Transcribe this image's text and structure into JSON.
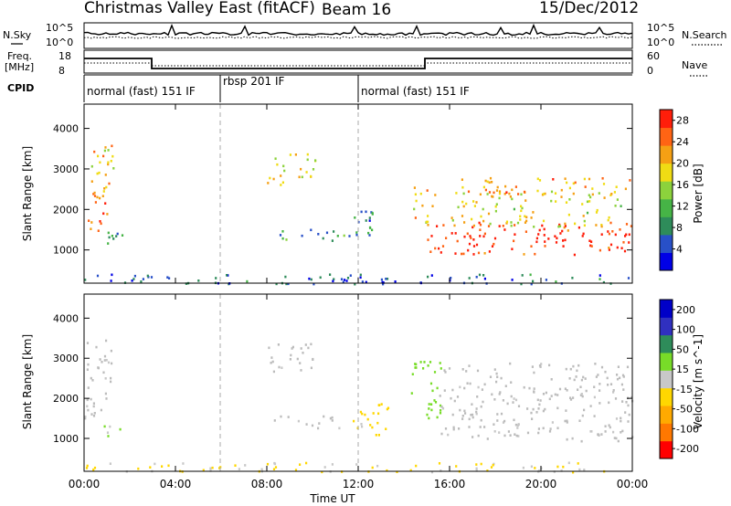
{
  "header": {
    "title_left": "Christmas Valley East (fitACF)",
    "title_beam": "Beam 16",
    "title_date": "15/Dec/2012"
  },
  "panels": {
    "nsky_label": "N.Sky",
    "nsky_ticks": [
      "10^5",
      "10^0"
    ],
    "nsearch_label": "N.Search",
    "nsearch_ticks": [
      "10^5",
      "10^0"
    ],
    "freq_label_1": "Freq.",
    "freq_label_2": "[MHz]",
    "freq_ticks": [
      "18",
      "8"
    ],
    "nave_label": "Nave",
    "nave_ticks": [
      "60",
      "0"
    ],
    "cpid_label": "CPID",
    "cpid_segments": [
      "normal (fast) 151 IF",
      "rbsp 201 IF",
      "normal (fast) 151 IF"
    ]
  },
  "colors": {
    "power_scale": [
      "#0000e6",
      "#2850c8",
      "#2e8c5a",
      "#46b446",
      "#8cd23c",
      "#f0dc14",
      "#f5a014",
      "#ff6414",
      "#ff1e0a"
    ],
    "velocity_scale": [
      "#ff0000",
      "#ff7800",
      "#ffaa00",
      "#ffd700",
      "#c8c8c8",
      "#78dc28",
      "#2e8c5a",
      "#3030c0",
      "#0000c8"
    ],
    "ground_scatter": "#bcbcbc"
  },
  "chart_data": [
    {
      "type": "heatmap",
      "title": "Power",
      "xlabel": "Time UT",
      "ylabel": "Slant Range [km]",
      "x_ticks": [
        "00:00",
        "04:00",
        "08:00",
        "12:00",
        "16:00",
        "20:00",
        "00:00"
      ],
      "x_range_hours": [
        0,
        24
      ],
      "y_ticks": [
        1000,
        2000,
        3000,
        4000
      ],
      "ylim": [
        180,
        4600
      ],
      "colorbar_label": "Power [dB]",
      "colorbar_ticks": [
        4,
        8,
        12,
        16,
        20,
        24,
        28
      ],
      "colorbar_range": [
        0,
        30
      ],
      "echo_regions": [
        {
          "t0": 0.0,
          "t1": 1.0,
          "r0": 1400,
          "r1": 2500,
          "value": 26
        },
        {
          "t0": 0.3,
          "t1": 1.4,
          "r0": 2300,
          "r1": 3600,
          "value": 20
        },
        {
          "t0": 0.8,
          "t1": 1.7,
          "r0": 1050,
          "r1": 1600,
          "value": 8
        },
        {
          "t0": 8.0,
          "t1": 10.1,
          "r0": 2600,
          "r1": 3400,
          "value": 18
        },
        {
          "t0": 8.2,
          "t1": 11.6,
          "r0": 1250,
          "r1": 1550,
          "value": 10
        },
        {
          "t0": 11.8,
          "t1": 13.2,
          "r0": 1300,
          "r1": 2000,
          "value": 8
        },
        {
          "t0": 14.4,
          "t1": 15.4,
          "r0": 1700,
          "r1": 2600,
          "value": 20
        },
        {
          "t0": 15.0,
          "t1": 24.0,
          "r0": 900,
          "r1": 1700,
          "value": 28
        },
        {
          "t0": 16.0,
          "t1": 23.5,
          "r0": 1600,
          "r1": 2500,
          "value": 18
        },
        {
          "t0": 16.5,
          "t1": 24.0,
          "r0": 2400,
          "r1": 2800,
          "value": 22
        },
        {
          "t0": 0.0,
          "t1": 24.0,
          "r0": 180,
          "r1": 420,
          "value": 6
        }
      ]
    },
    {
      "type": "heatmap",
      "title": "Velocity",
      "xlabel": "Time UT",
      "ylabel": "Slant Range [km]",
      "x_ticks": [
        "00:00",
        "04:00",
        "08:00",
        "12:00",
        "16:00",
        "20:00",
        "00:00"
      ],
      "x_range_hours": [
        0,
        24
      ],
      "y_ticks": [
        1000,
        2000,
        3000,
        4000
      ],
      "ylim": [
        180,
        4600
      ],
      "colorbar_label": "Velocity [m s^-1]",
      "colorbar_ticks": [
        200,
        100,
        50,
        15,
        -15,
        -50,
        -100,
        -200
      ],
      "colorbar_range": [
        -250,
        250
      ],
      "echo_regions": [
        {
          "t0": 0.0,
          "t1": 1.2,
          "r0": 1400,
          "r1": 3500,
          "value": 0,
          "ground_scatter": true
        },
        {
          "t0": 0.8,
          "t1": 1.6,
          "r0": 1050,
          "r1": 1400,
          "value": 40
        },
        {
          "t0": 8.0,
          "t1": 10.0,
          "r0": 2600,
          "r1": 3400,
          "value": 0,
          "ground_scatter": true
        },
        {
          "t0": 8.0,
          "t1": 11.5,
          "r0": 1250,
          "r1": 1600,
          "value": 0,
          "ground_scatter": true
        },
        {
          "t0": 11.6,
          "t1": 13.4,
          "r0": 1100,
          "r1": 1900,
          "value": -45
        },
        {
          "t0": 14.3,
          "t1": 15.6,
          "r0": 1500,
          "r1": 3000,
          "value": 60
        },
        {
          "t0": 15.5,
          "t1": 24.0,
          "r0": 950,
          "r1": 2900,
          "value": 0,
          "ground_scatter": true
        },
        {
          "t0": 0.0,
          "t1": 24.0,
          "r0": 180,
          "r1": 420,
          "value": -30
        }
      ]
    }
  ]
}
